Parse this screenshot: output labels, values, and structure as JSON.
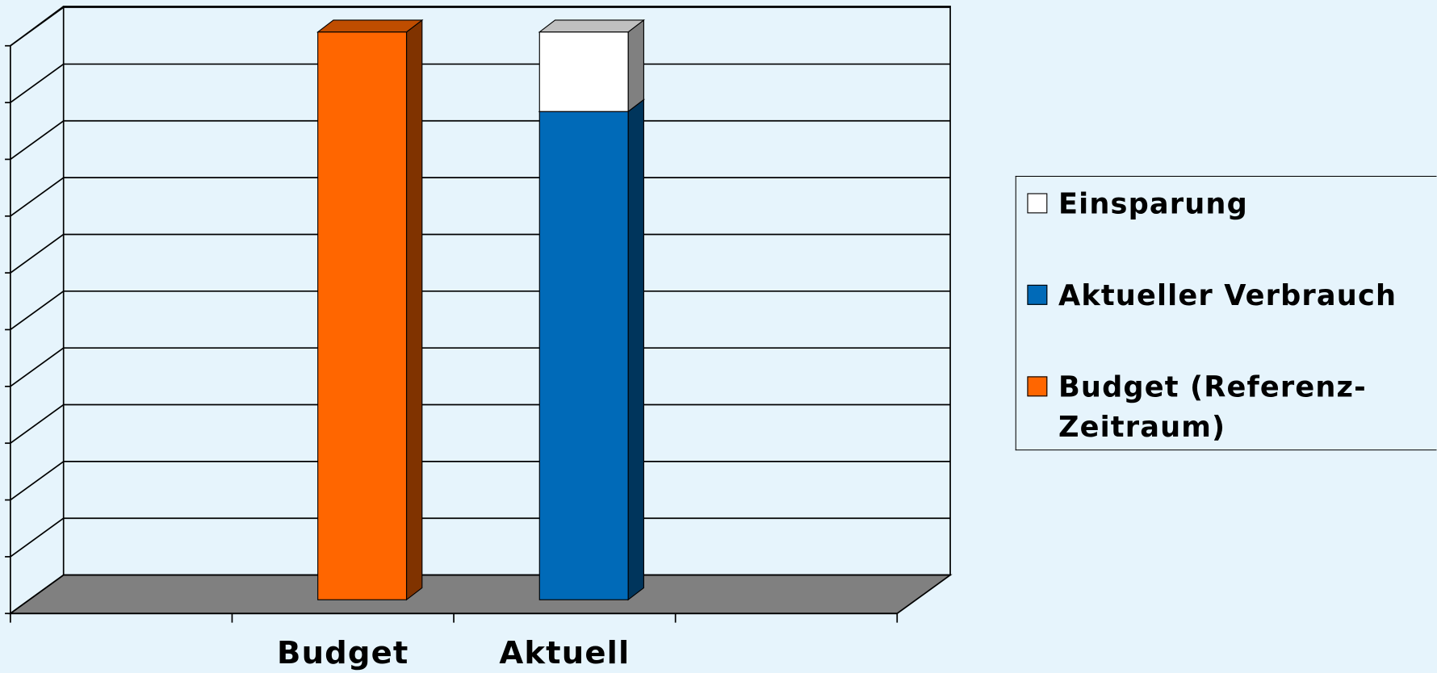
{
  "chart_data": {
    "type": "bar3d-stacked",
    "categories": [
      null,
      "Budget",
      "Aktuell",
      null
    ],
    "series": [
      {
        "name": "Budget (Referenz-Zeitraum)",
        "color": "#ff6600",
        "values": [
          null,
          10,
          null,
          null
        ]
      },
      {
        "name": "Aktueller Verbrauch",
        "color": "#006ab8",
        "values": [
          null,
          null,
          8.6,
          null
        ]
      },
      {
        "name": "Einsparung",
        "color": "#ffffff",
        "values": [
          null,
          null,
          1.4,
          null
        ]
      }
    ],
    "ylim": [
      0,
      10
    ],
    "yticks": [
      0,
      1,
      2,
      3,
      4,
      5,
      6,
      7,
      8,
      9,
      10
    ],
    "grid": true,
    "legend": "right"
  }
}
